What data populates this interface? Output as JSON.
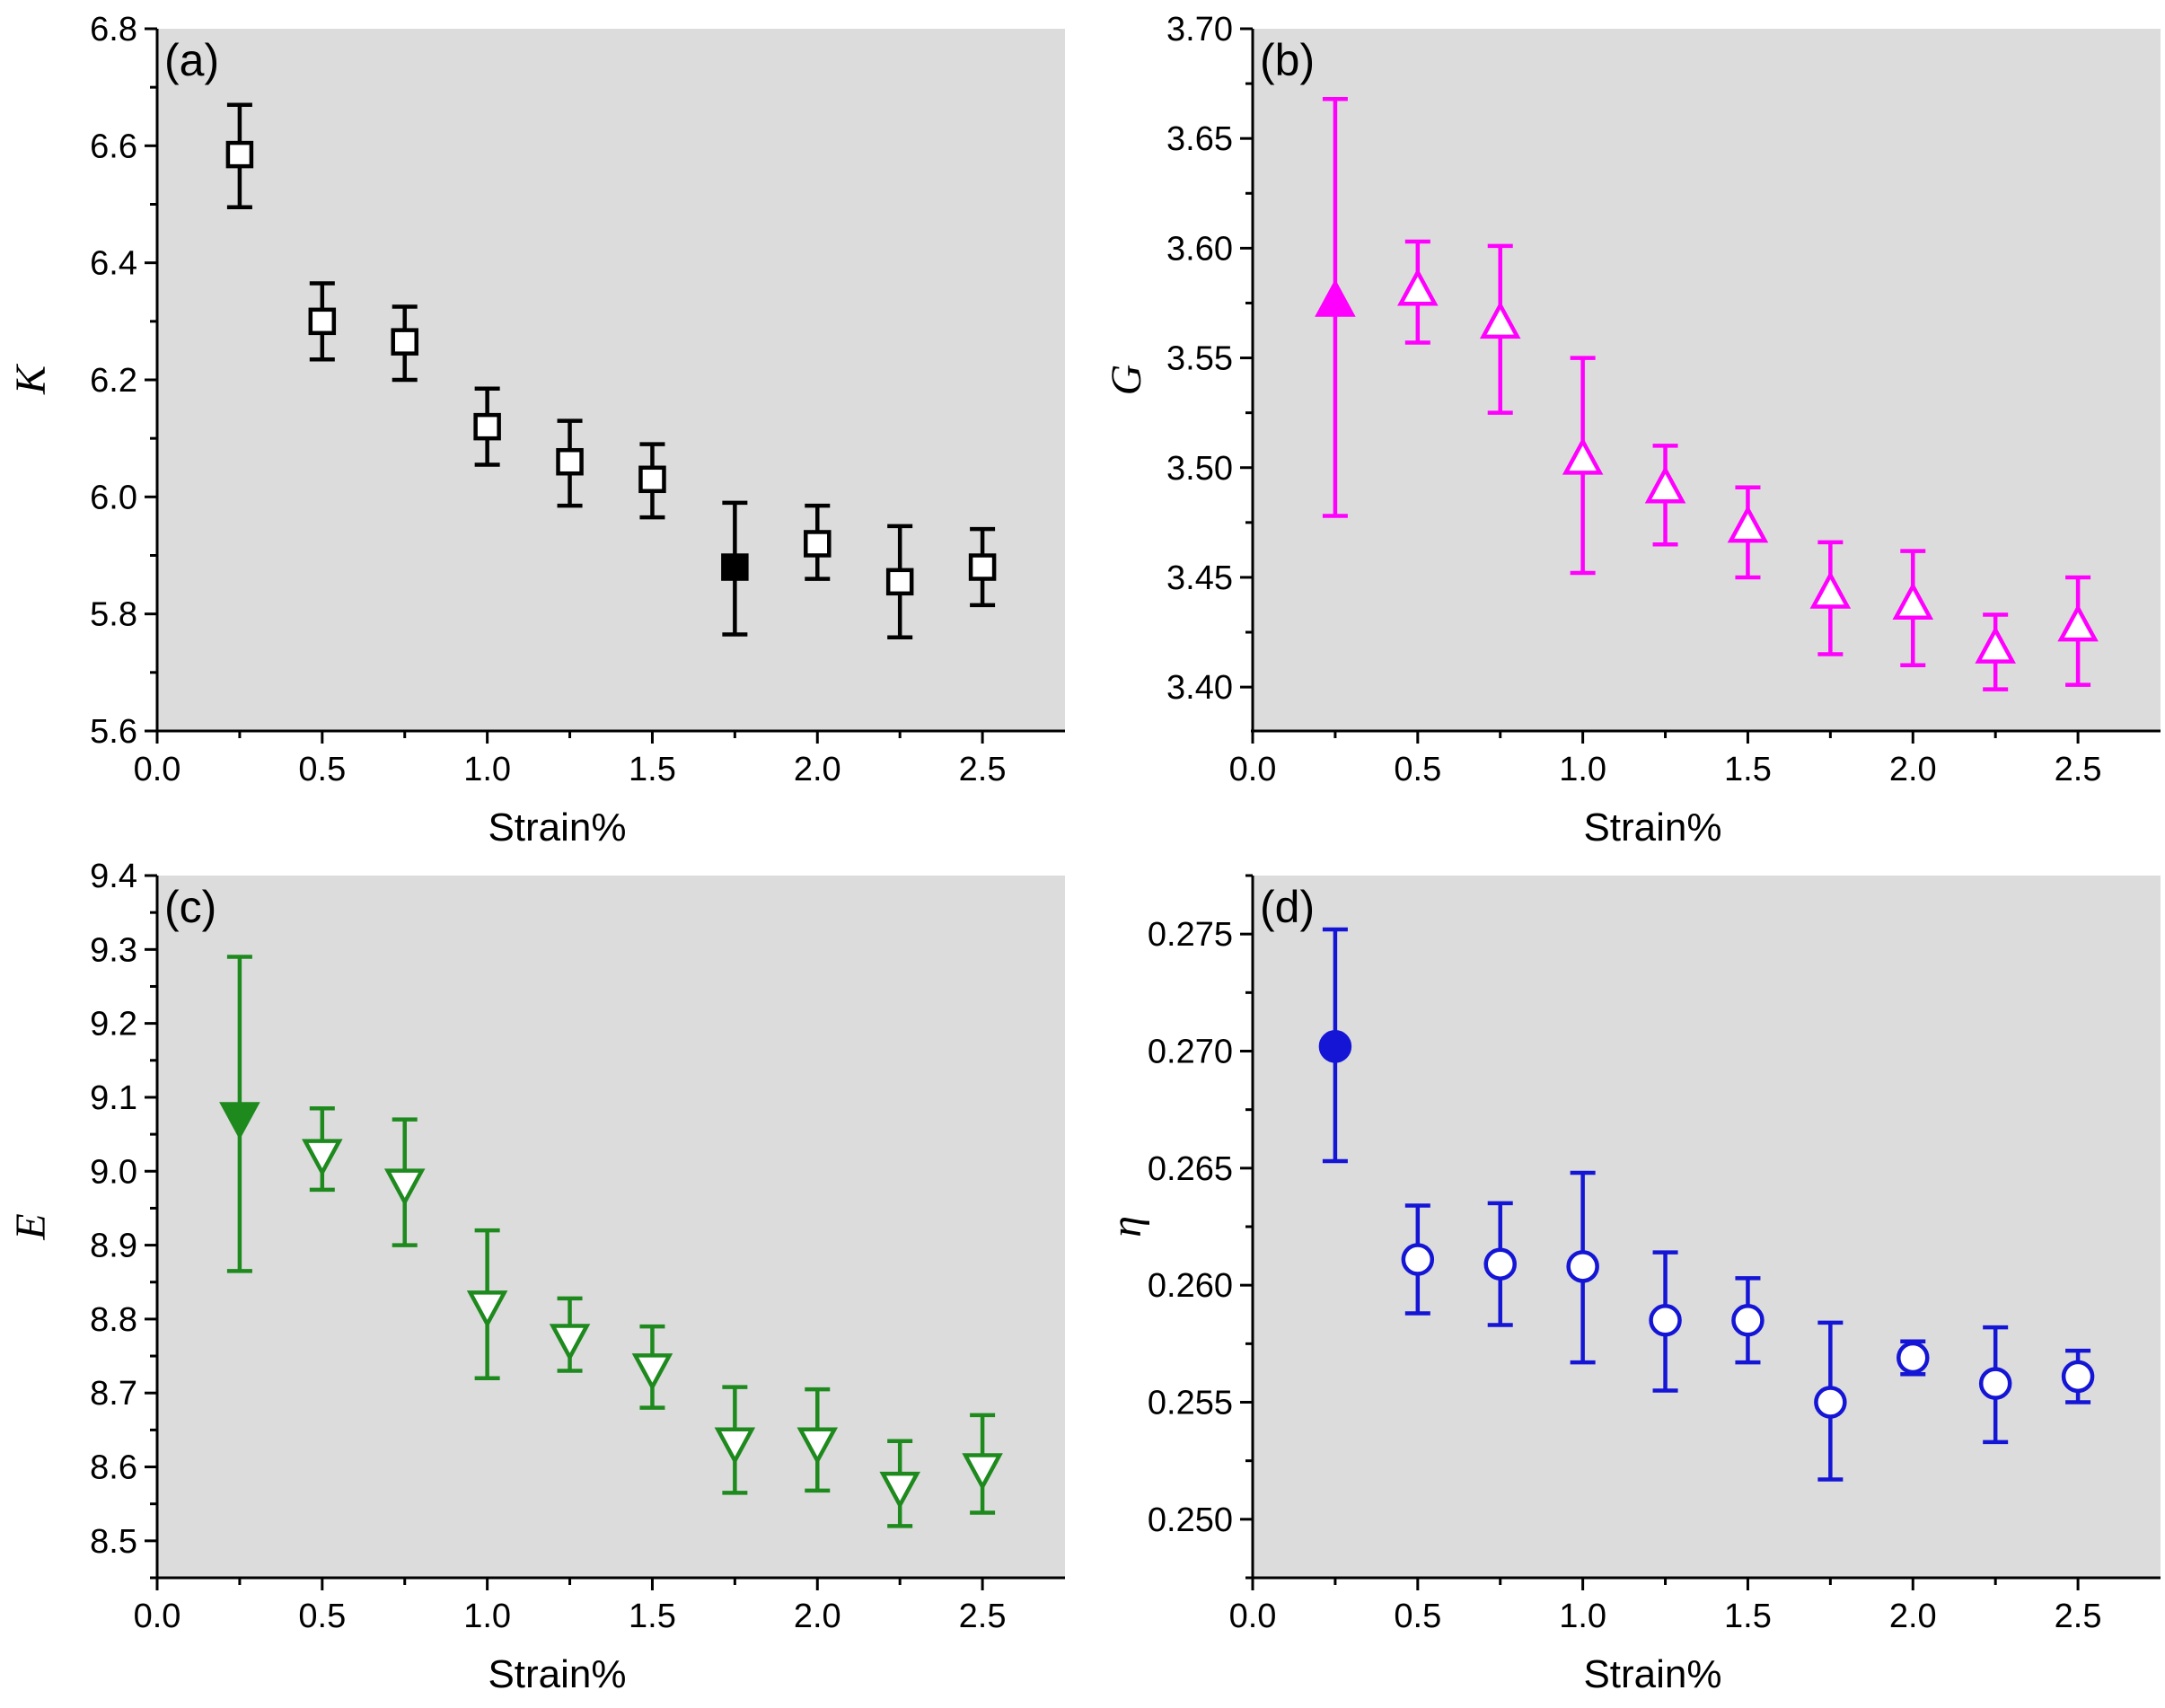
{
  "figure": {
    "plot_background": "#dcdcdc",
    "axis_color": "#000000"
  },
  "chart_data": [
    {
      "type": "scatter",
      "panel_label": "(a)",
      "xlabel": "Strain%",
      "ylabel": "K",
      "xlim": [
        0.0,
        2.75
      ],
      "ylim": [
        5.6,
        6.8
      ],
      "xticks": [
        "0.0",
        "0.5",
        "1.0",
        "1.5",
        "2.0",
        "2.5"
      ],
      "yticks": [
        "5.6",
        "5.8",
        "6.0",
        "6.2",
        "6.4",
        "6.6",
        "6.8"
      ],
      "color": "#000000",
      "marker": "square",
      "x": [
        0.25,
        0.5,
        0.75,
        1.0,
        1.25,
        1.5,
        1.75,
        2.0,
        2.25,
        2.5
      ],
      "y": [
        6.585,
        6.3,
        6.265,
        6.12,
        6.06,
        6.03,
        5.88,
        5.92,
        5.855,
        5.88
      ],
      "err_low": [
        6.495,
        6.235,
        6.2,
        6.055,
        5.985,
        5.965,
        5.765,
        5.86,
        5.76,
        5.815
      ],
      "err_high": [
        6.67,
        6.365,
        6.325,
        6.185,
        6.13,
        6.09,
        5.99,
        5.985,
        5.95,
        5.945
      ],
      "filled": [
        false,
        false,
        false,
        false,
        false,
        false,
        true,
        false,
        false,
        false
      ]
    },
    {
      "type": "scatter",
      "panel_label": "(b)",
      "xlabel": "Strain%",
      "ylabel": "G",
      "xlim": [
        0.0,
        2.75
      ],
      "ylim": [
        3.38,
        3.7
      ],
      "xticks": [
        "0.0",
        "0.5",
        "1.0",
        "1.5",
        "2.0",
        "2.5"
      ],
      "yticks": [
        "3.40",
        "3.45",
        "3.50",
        "3.55",
        "3.60",
        "3.65",
        "3.70"
      ],
      "color": "#ff00ff",
      "marker": "triangle-up",
      "x": [
        0.25,
        0.5,
        0.75,
        1.0,
        1.25,
        1.5,
        1.75,
        2.0,
        2.25,
        2.5
      ],
      "y": [
        3.575,
        3.58,
        3.565,
        3.503,
        3.49,
        3.472,
        3.442,
        3.437,
        3.417,
        3.427
      ],
      "err_low": [
        3.478,
        3.557,
        3.525,
        3.452,
        3.465,
        3.45,
        3.415,
        3.41,
        3.399,
        3.401
      ],
      "err_high": [
        3.668,
        3.603,
        3.601,
        3.55,
        3.51,
        3.491,
        3.466,
        3.462,
        3.433,
        3.45
      ],
      "filled": [
        true,
        false,
        false,
        false,
        false,
        false,
        false,
        false,
        false,
        false
      ]
    },
    {
      "type": "scatter",
      "panel_label": "(c)",
      "xlabel": "Strain%",
      "ylabel": "E",
      "xlim": [
        0.0,
        2.75
      ],
      "ylim": [
        8.45,
        9.4
      ],
      "xticks": [
        "0.0",
        "0.5",
        "1.0",
        "1.5",
        "2.0",
        "2.5"
      ],
      "yticks": [
        "8.5",
        "8.6",
        "8.7",
        "8.8",
        "8.9",
        "9.0",
        "9.1",
        "9.2",
        "9.3",
        "9.4"
      ],
      "color": "#1e8a1e",
      "marker": "triangle-down",
      "x": [
        0.25,
        0.5,
        0.75,
        1.0,
        1.25,
        1.5,
        1.75,
        2.0,
        2.25,
        2.5
      ],
      "y": [
        9.075,
        9.025,
        8.985,
        8.82,
        8.775,
        8.735,
        8.635,
        8.635,
        8.575,
        8.6
      ],
      "err_low": [
        8.865,
        8.975,
        8.9,
        8.72,
        8.73,
        8.68,
        8.565,
        8.568,
        8.52,
        8.538
      ],
      "err_high": [
        9.29,
        9.085,
        9.07,
        8.92,
        8.828,
        8.79,
        8.708,
        8.705,
        8.635,
        8.67
      ],
      "filled": [
        true,
        false,
        false,
        false,
        false,
        false,
        false,
        false,
        false,
        false
      ]
    },
    {
      "type": "scatter",
      "panel_label": "(d)",
      "xlabel": "Strain%",
      "ylabel": "η",
      "xlim": [
        0.0,
        2.75
      ],
      "ylim": [
        0.2475,
        0.2775
      ],
      "xticks": [
        "0.0",
        "0.5",
        "1.0",
        "1.5",
        "2.0",
        "2.5"
      ],
      "yticks": [
        "0.250",
        "0.255",
        "0.260",
        "0.265",
        "0.270",
        "0.275"
      ],
      "color": "#1515d6",
      "marker": "circle",
      "x": [
        0.25,
        0.5,
        0.75,
        1.0,
        1.25,
        1.5,
        1.75,
        2.0,
        2.25,
        2.5
      ],
      "y": [
        0.2702,
        0.2611,
        0.2609,
        0.2608,
        0.2585,
        0.2585,
        0.255,
        0.2569,
        0.2558,
        0.2561
      ],
      "err_low": [
        0.2653,
        0.2588,
        0.2583,
        0.2567,
        0.2555,
        0.2567,
        0.2517,
        0.2562,
        0.2533,
        0.255
      ],
      "err_high": [
        0.2752,
        0.2634,
        0.2635,
        0.2648,
        0.2614,
        0.2603,
        0.2584,
        0.2576,
        0.2582,
        0.2572
      ],
      "filled": [
        true,
        false,
        false,
        false,
        false,
        false,
        false,
        false,
        false,
        false
      ]
    }
  ]
}
